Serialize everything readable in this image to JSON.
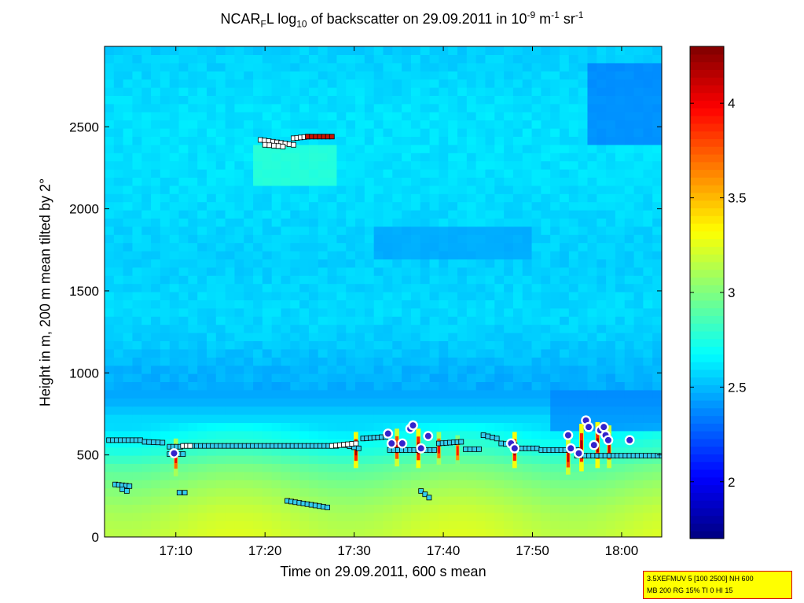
{
  "title": {
    "prefix": "NCAR",
    "sub1": "F",
    "mid1": "L log",
    "sub2": "10",
    "mid2": " of backscatter on 29.09.2011 in 10",
    "sup1": "-9",
    "mid3": " m",
    "sup2": "-1",
    "mid4": " sr",
    "sup3": "-1"
  },
  "info_box": {
    "line1": "3.5XEFMUV 5 [100 2500] NH 600",
    "line2": "MB 200 RG 15% TI 0 HI 15"
  },
  "colors": {
    "marker_cyan": "#33ccee",
    "marker_white": "#ffffff",
    "marker_red": "#cc1100",
    "dot_fill": "#3322cc",
    "dot_ring": "#ffffff"
  },
  "chart_data": {
    "type": "heatmap",
    "xlabel": "Time on 29.09.2011, 600 s mean",
    "ylabel": "Height in m, 200 m mean tilted by 2°",
    "xlim": [
      1022,
      1084.5
    ],
    "ylim": [
      0,
      2990
    ],
    "x_ticks": [
      1030,
      1040,
      1050,
      1060,
      1070,
      1080
    ],
    "x_tick_labels": [
      "17:10",
      "17:20",
      "17:30",
      "17:40",
      "17:50",
      "18:00"
    ],
    "y_ticks": [
      0,
      500,
      1000,
      1500,
      2000,
      2500
    ],
    "y_tick_labels": [
      "0",
      "500",
      "1000",
      "1500",
      "2000",
      "2500"
    ],
    "colorbar": {
      "range": [
        1.7,
        4.3
      ],
      "ticks": [
        2,
        2.5,
        3,
        3.5,
        4
      ],
      "tick_labels": [
        "2",
        "2.5",
        "3",
        "3.5",
        "4"
      ],
      "colormap": "jet"
    },
    "field_profile": {
      "heights": [
        0,
        150,
        300,
        420,
        520,
        600,
        700,
        850,
        1000,
        1200,
        1400,
        1700,
        2000,
        2300,
        2600,
        2990
      ],
      "values": [
        3.2,
        3.15,
        3.05,
        2.95,
        2.8,
        2.72,
        2.6,
        2.45,
        2.48,
        2.55,
        2.58,
        2.55,
        2.58,
        2.6,
        2.6,
        2.55
      ]
    },
    "anomalies": [
      {
        "name": "elevated layer",
        "x": [
          1039,
          1048
        ],
        "y": [
          2150,
          2400
        ],
        "value": 2.85
      },
      {
        "name": "dark patch upper right",
        "x": [
          1076,
          1084.5
        ],
        "y": [
          2400,
          2900
        ],
        "value": 2.3
      },
      {
        "name": "dark patch 1700-1900m",
        "x": [
          1052,
          1070
        ],
        "y": [
          1700,
          1900
        ],
        "value": 2.42
      },
      {
        "name": "low band 650-900m",
        "x": [
          1072,
          1084.5
        ],
        "y": [
          650,
          900
        ],
        "value": 2.35
      }
    ],
    "plumes": [
      {
        "x": 1030.0,
        "y_bottom": 370,
        "y_top": 600,
        "peak": 4.0
      },
      {
        "x": 1050.2,
        "y_bottom": 420,
        "y_top": 640,
        "peak": 4.2
      },
      {
        "x": 1054.8,
        "y_bottom": 430,
        "y_top": 660,
        "peak": 4.1
      },
      {
        "x": 1057.2,
        "y_bottom": 420,
        "y_top": 660,
        "peak": 4.2
      },
      {
        "x": 1059.5,
        "y_bottom": 440,
        "y_top": 640,
        "peak": 4.0
      },
      {
        "x": 1061.6,
        "y_bottom": 430,
        "y_top": 620,
        "peak": 3.9
      },
      {
        "x": 1068.0,
        "y_bottom": 420,
        "y_top": 640,
        "peak": 4.2
      },
      {
        "x": 1074.0,
        "y_bottom": 380,
        "y_top": 600,
        "peak": 4.1
      },
      {
        "x": 1075.5,
        "y_bottom": 400,
        "y_top": 690,
        "peak": 4.2
      },
      {
        "x": 1077.3,
        "y_bottom": 420,
        "y_top": 700,
        "peak": 4.2
      },
      {
        "x": 1078.6,
        "y_bottom": 420,
        "y_top": 680,
        "peak": 4.1
      }
    ],
    "marker_series": [
      {
        "name": "boundary layer top (cyan squares)",
        "style": "cyan-square",
        "segments": [
          {
            "x": [
              1022.5,
              1026
            ],
            "y": [
              590,
              590
            ]
          },
          {
            "x": [
              1026.5,
              1028.5
            ],
            "y": [
              580,
              575
            ]
          },
          {
            "x": [
              1029.3,
              1030.5
            ],
            "y": [
              550,
              550
            ]
          },
          {
            "x": [
              1031,
              1048
            ],
            "y": [
              555,
              555
            ]
          },
          {
            "x": [
              1049,
              1050.5
            ],
            "y": [
              560,
              540
            ]
          },
          {
            "x": [
              1051,
              1053.5
            ],
            "y": [
              600,
              610
            ]
          },
          {
            "x": [
              1054,
              1059
            ],
            "y": [
              530,
              530
            ]
          },
          {
            "x": [
              1059.5,
              1062
            ],
            "y": [
              570,
              580
            ]
          },
          {
            "x": [
              1062.5,
              1064
            ],
            "y": [
              535,
              535
            ]
          },
          {
            "x": [
              1064.5,
              1066
            ],
            "y": [
              620,
              600
            ]
          },
          {
            "x": [
              1066.5,
              1068
            ],
            "y": [
              570,
              560
            ]
          },
          {
            "x": [
              1068,
              1070.5
            ],
            "y": [
              540,
              540
            ]
          },
          {
            "x": [
              1071,
              1075
            ],
            "y": [
              530,
              530
            ]
          },
          {
            "x": [
              1075,
              1084.5
            ],
            "y": [
              495,
              495
            ]
          },
          {
            "x": [
              1023.2,
              1024.8
            ],
            "y": [
              320,
              310
            ]
          },
          {
            "x": [
              1024,
              1024.5
            ],
            "y": [
              290,
              280
            ]
          },
          {
            "x": [
              1030.4,
              1031
            ],
            "y": [
              270,
              270
            ]
          },
          {
            "x": [
              1042.5,
              1047
            ],
            "y": [
              220,
              180
            ]
          },
          {
            "x": [
              1057.5,
              1058.4
            ],
            "y": [
              280,
              240
            ]
          },
          {
            "x": [
              1029.3,
              1030.8
            ],
            "y": [
              505,
              505
            ]
          }
        ]
      },
      {
        "name": "elevated layer (white squares)",
        "style": "white-square",
        "segments": [
          {
            "x": [
              1039.5,
              1043.2
            ],
            "y": [
              2420,
              2390
            ]
          },
          {
            "x": [
              1043.2,
              1044.8
            ],
            "y": [
              2430,
              2440
            ]
          },
          {
            "x": [
              1040,
              1042
            ],
            "y": [
              2390,
              2380
            ]
          }
        ]
      },
      {
        "name": "elevated layer (red squares)",
        "style": "red-square",
        "segments": [
          {
            "x": [
              1044.8,
              1047.5
            ],
            "y": [
              2440,
              2440
            ]
          }
        ]
      },
      {
        "name": "layer top (white squares)",
        "style": "white-square",
        "segments": [
          {
            "x": [
              1047.5,
              1050.2
            ],
            "y": [
              555,
              570
            ]
          },
          {
            "x": [
              1030.8,
              1031.6
            ],
            "y": [
              555,
              555
            ]
          }
        ]
      }
    ],
    "dots": [
      {
        "x": 1029.8,
        "y": 510
      },
      {
        "x": 1053.8,
        "y": 630
      },
      {
        "x": 1054.2,
        "y": 570
      },
      {
        "x": 1055.4,
        "y": 570
      },
      {
        "x": 1056.3,
        "y": 660
      },
      {
        "x": 1056.6,
        "y": 680
      },
      {
        "x": 1057.5,
        "y": 540
      },
      {
        "x": 1058.3,
        "y": 615
      },
      {
        "x": 1067.6,
        "y": 570
      },
      {
        "x": 1068.0,
        "y": 540
      },
      {
        "x": 1074.0,
        "y": 620
      },
      {
        "x": 1074.3,
        "y": 540
      },
      {
        "x": 1075.2,
        "y": 510
      },
      {
        "x": 1076.0,
        "y": 710
      },
      {
        "x": 1076.3,
        "y": 670
      },
      {
        "x": 1076.9,
        "y": 560
      },
      {
        "x": 1077.6,
        "y": 650
      },
      {
        "x": 1078.0,
        "y": 670
      },
      {
        "x": 1078.2,
        "y": 620
      },
      {
        "x": 1078.5,
        "y": 590
      },
      {
        "x": 1080.9,
        "y": 590
      }
    ]
  }
}
